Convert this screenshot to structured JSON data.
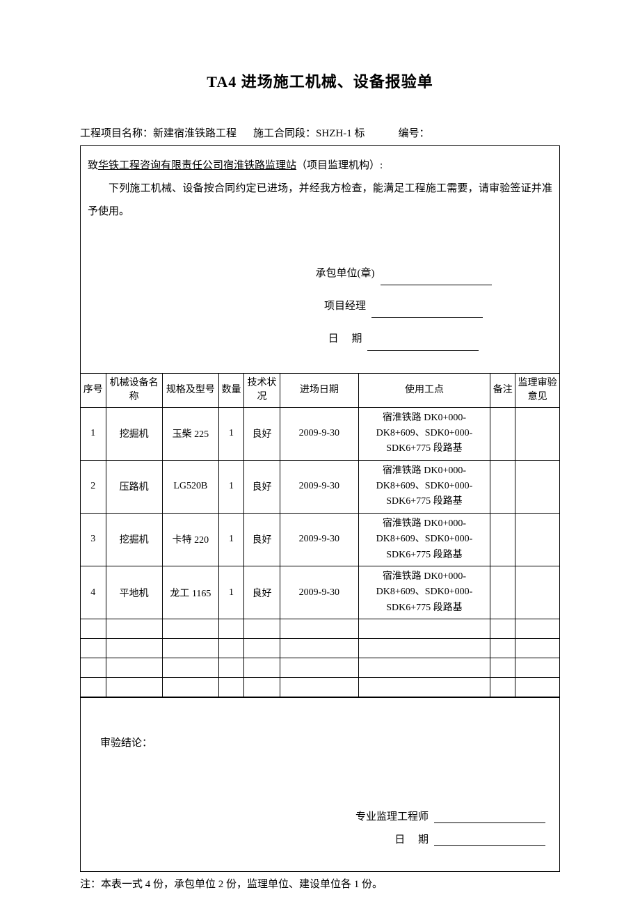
{
  "title": "TA4 进场施工机械、设备报验单",
  "meta": {
    "project_label": "工程项目名称：",
    "project_value": "新建宿淮铁路工程",
    "section_label": "施工合同段：",
    "section_value": "SHZH-1 标",
    "number_label": "编号："
  },
  "intro": {
    "to_prefix": "致",
    "to_org": "华铁工程咨询有限责任公司宿淮铁路监理站",
    "to_suffix": "（项目监理机构）:",
    "body": "下列施工机械、设备按合同约定已进场，并经我方检查，能满足工程施工需要，请审验签证并准予使用。"
  },
  "sig1": {
    "contractor_label": "承包单位(章)",
    "pm_label": "项目经理",
    "date_label": "日　 期"
  },
  "table": {
    "headers": {
      "seq": "序号",
      "name": "机械设备名称",
      "spec": "规格及型号",
      "qty": "数量",
      "cond": "技术状况",
      "date": "进场日期",
      "loc": "使用工点",
      "note": "备注",
      "opinion": "监理审验意见"
    },
    "rows": [
      {
        "seq": "1",
        "name": "挖掘机",
        "spec": "玉柴 225",
        "qty": "1",
        "cond": "良好",
        "date": "2009-9-30",
        "loc": "宿淮铁路 DK0+000-DK8+609、SDK0+000-SDK6+775 段路基"
      },
      {
        "seq": "2",
        "name": "压路机",
        "spec": "LG520B",
        "qty": "1",
        "cond": "良好",
        "date": "2009-9-30",
        "loc": "宿淮铁路 DK0+000-DK8+609、SDK0+000-SDK6+775 段路基"
      },
      {
        "seq": "3",
        "name": "挖掘机",
        "spec": "卡特 220",
        "qty": "1",
        "cond": "良好",
        "date": "2009-9-30",
        "loc": "宿淮铁路 DK0+000-DK8+609、SDK0+000-SDK6+775 段路基"
      },
      {
        "seq": "4",
        "name": "平地机",
        "spec": "龙工 1165",
        "qty": "1",
        "cond": "良好",
        "date": "2009-9-30",
        "loc": "宿淮铁路 DK0+000-DK8+609、SDK0+000-SDK6+775 段路基"
      }
    ],
    "empty_rows": 4
  },
  "conclusion": {
    "label": "审验结论：",
    "engineer_label": "专业监理工程师",
    "date_label": "日　 期"
  },
  "footer": "注：本表一式 4 份，承包单位 2 份，监理单位、建设单位各 1 份。"
}
